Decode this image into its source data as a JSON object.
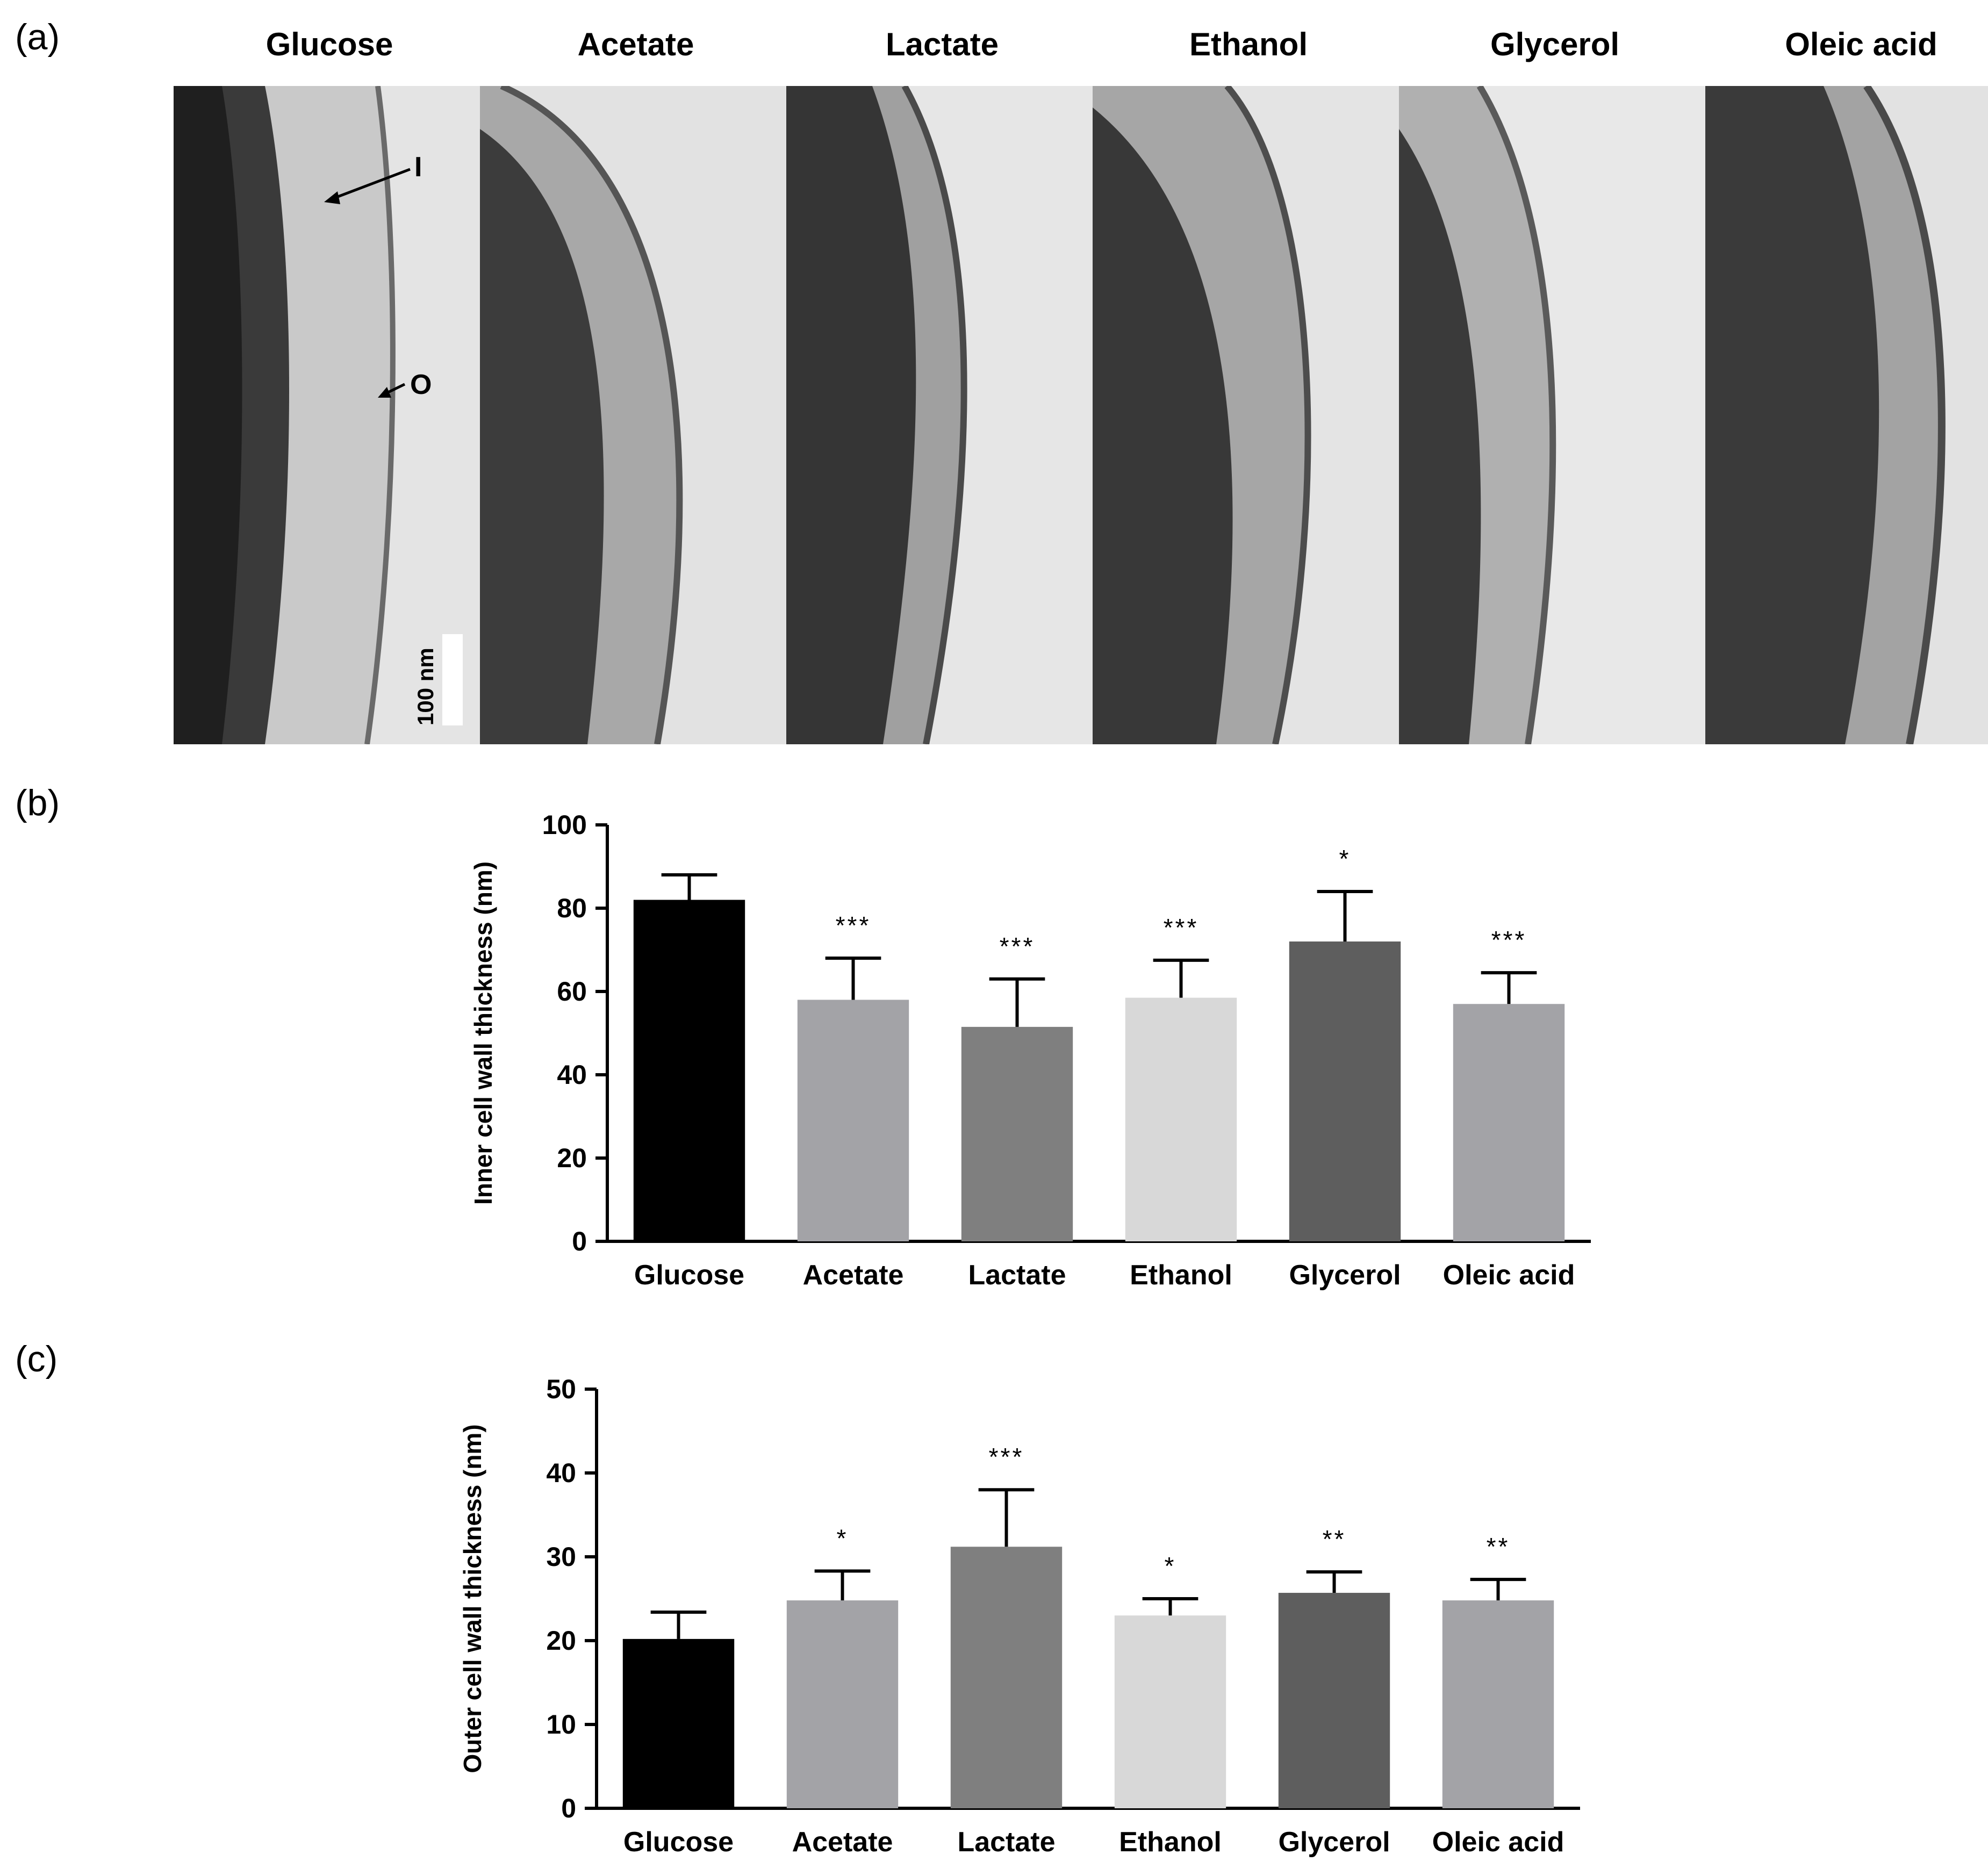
{
  "panel_labels": {
    "a": "(a)",
    "b": "(b)",
    "c": "(c)"
  },
  "micrographs": {
    "titles": [
      "Glucose",
      "Acetate",
      "Lactate",
      "Ethanol",
      "Glycerol",
      "Oleic acid"
    ],
    "annotations": {
      "inner": "I",
      "outer": "O"
    },
    "scale_bar": "100 nm"
  },
  "chart_data": [
    {
      "type": "bar",
      "panel": "b",
      "categories": [
        "Glucose",
        "Acetate",
        "Lactate",
        "Ethanol",
        "Glycerol",
        "Oleic acid"
      ],
      "values": [
        82,
        58,
        51.5,
        58.5,
        72,
        57
      ],
      "errors": [
        6,
        10,
        11.5,
        9,
        12,
        7.5
      ],
      "significance": [
        "",
        "***",
        "***",
        "***",
        "*",
        "***"
      ],
      "colors": [
        "#000000",
        "#a3a3a7",
        "#7f7f7f",
        "#d8d8d8",
        "#5e5e5e",
        "#a3a3a7"
      ],
      "ylabel": "Inner cell wall thickness (nm)",
      "ylim": [
        0,
        100
      ],
      "yticks": [
        0,
        20,
        40,
        60,
        80,
        100
      ]
    },
    {
      "type": "bar",
      "panel": "c",
      "categories": [
        "Glucose",
        "Acetate",
        "Lactate",
        "Ethanol",
        "Glycerol",
        "Oleic acid"
      ],
      "values": [
        20.2,
        24.8,
        31.2,
        23,
        25.7,
        24.8
      ],
      "errors": [
        3.2,
        3.5,
        6.8,
        2,
        2.5,
        2.5
      ],
      "significance": [
        "",
        "*",
        "***",
        "*",
        "**",
        "**"
      ],
      "colors": [
        "#000000",
        "#a3a3a7",
        "#7f7f7f",
        "#d8d8d8",
        "#5e5e5e",
        "#a3a3a7"
      ],
      "ylabel": "Outer cell wall thickness (nm)",
      "ylim": [
        0,
        50
      ],
      "yticks": [
        0,
        10,
        20,
        30,
        40,
        50
      ]
    }
  ]
}
